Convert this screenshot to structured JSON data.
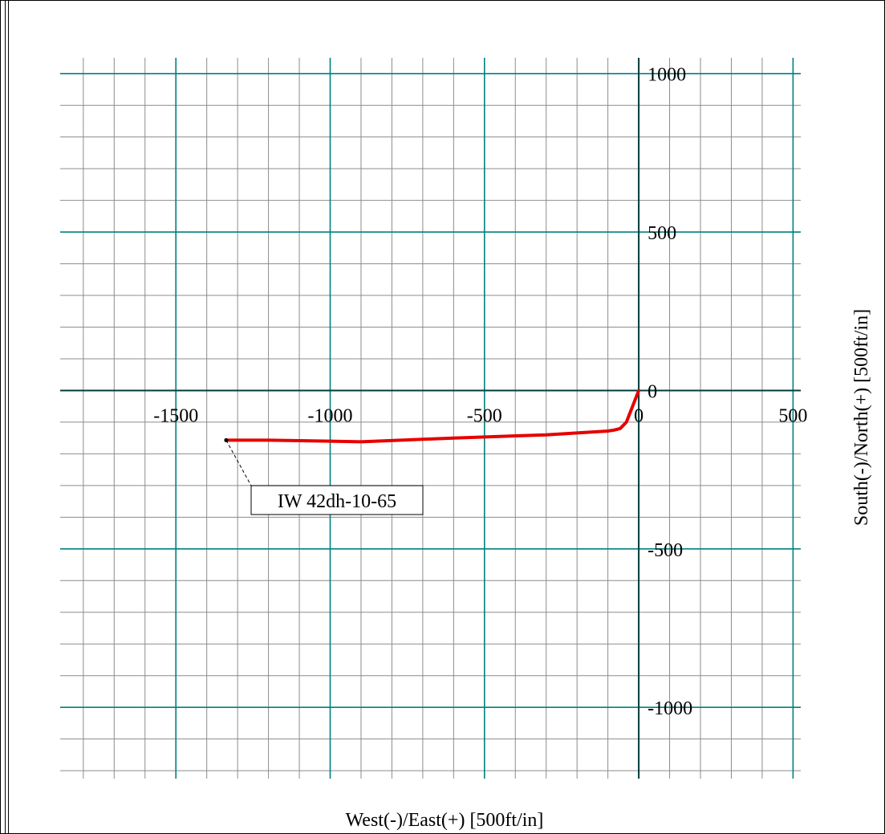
{
  "chart_data": {
    "type": "line",
    "xlabel": "West(-)/East(+) [500ft/in]",
    "ylabel": "South(-)/North(+) [500ft/in]",
    "xlim": [
      -1875,
      525
    ],
    "ylim": [
      -1225,
      1050
    ],
    "x_ticks": [
      -1500,
      -1000,
      -500,
      0,
      500
    ],
    "x_tick_labels": [
      "-1500",
      "-1000",
      "-500",
      "0",
      "500"
    ],
    "y_ticks": [
      1000,
      500,
      0,
      -500,
      -1000
    ],
    "y_tick_labels": [
      "1000",
      "500",
      "0",
      "-500",
      "-1000"
    ],
    "grid": true,
    "major_grid_step": 500,
    "minor_grid_step": 100,
    "series": [
      {
        "color": "#e60000",
        "x": [
          0,
          -20,
          -40,
          -60,
          -80,
          -100,
          -300,
          -600,
          -900,
          -1000,
          -1200,
          -1337
        ],
        "y": [
          0,
          -50,
          -100,
          -120,
          -125,
          -128,
          -140,
          -150,
          -162,
          -160,
          -157,
          -157
        ]
      }
    ],
    "annotations": [
      {
        "text": "IW 42dh-10-65",
        "x": -1337,
        "y": -157
      }
    ],
    "colors": {
      "minor_grid": "#8c8c8c",
      "major_grid": "#008080",
      "axis": "#003c3c",
      "series": "#e60000"
    }
  }
}
